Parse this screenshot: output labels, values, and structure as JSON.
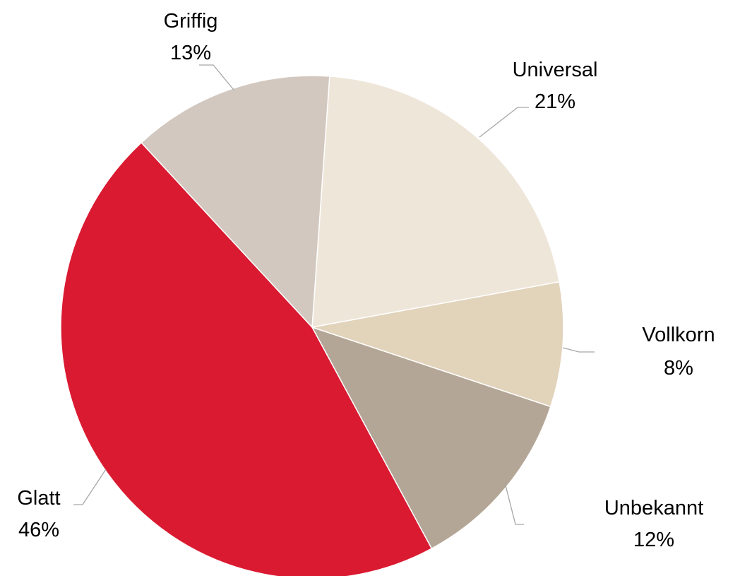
{
  "chart_data": {
    "type": "pie",
    "title": "",
    "start": "Universal slice begins just right of 12 o'clock, slices proceed clockwise",
    "slices": [
      {
        "name": "Universal",
        "label": "21%",
        "value": 21,
        "color": "#efe6da"
      },
      {
        "name": "Vollkorn",
        "label": "8%",
        "value": 8,
        "color": "#e2d3bb"
      },
      {
        "name": "Unbekannt",
        "label": "12%",
        "value": 12,
        "color": "#b4a696"
      },
      {
        "name": "Glatt",
        "label": "46%",
        "value": 46,
        "color": "#da1a31"
      },
      {
        "name": "Griffig",
        "label": "13%",
        "value": 13,
        "color": "#d2c8bf"
      }
    ],
    "legend": "none",
    "data_labels": "outside with leader lines"
  }
}
